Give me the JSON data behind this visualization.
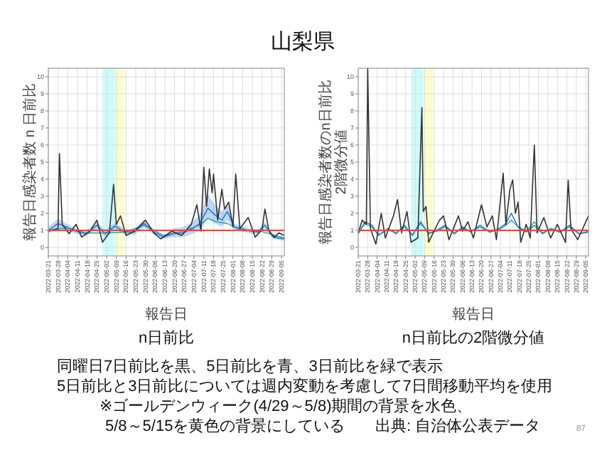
{
  "chart_data": [
    {
      "type": "line",
      "title": "山梨県",
      "subtitle": "n日前比",
      "xlabel": "報告日",
      "ylabel": "報告日感染者数 n 日前比",
      "xlim": [
        "2022-03-21",
        "2022-09-07"
      ],
      "ylim": [
        -0.5,
        10.5
      ],
      "yticks": [
        0,
        1,
        2,
        3,
        4,
        5,
        6,
        7,
        8,
        9,
        10
      ],
      "xticks": [
        "2022-03-21",
        "2022-03-28",
        "2022-04-04",
        "2022-04-11",
        "2022-04-18",
        "2022-04-25",
        "2022-05-02",
        "2022-05-09",
        "2022-05-16",
        "2022-05-23",
        "2022-05-30",
        "2022-06-06",
        "2022-06-13",
        "2022-06-20",
        "2022-06-27",
        "2022-07-04",
        "2022-07-11",
        "2022-07-18",
        "2022-07-25",
        "2022-08-01",
        "2022-08-08",
        "2022-08-15",
        "2022-08-22",
        "2022-08-29",
        "2022-09-05"
      ],
      "grid": true,
      "bands": [
        {
          "axis": "x",
          "from": "2022-04-29",
          "to": "2022-05-08",
          "color": "#ccfbfb"
        },
        {
          "axis": "x",
          "from": "2022-05-08",
          "to": "2022-05-15",
          "color": "#fdfccd"
        }
      ],
      "ref_lines": [
        {
          "axis": "y",
          "value": 1,
          "color": "#e5473c"
        }
      ],
      "series": [
        {
          "color": "#3cb39a",
          "x": [
            "2022-03-21",
            "2022-04-03",
            "2022-04-17",
            "2022-05-01",
            "2022-05-15",
            "2022-05-29",
            "2022-06-12",
            "2022-06-26",
            "2022-07-08",
            "2022-07-14",
            "2022-07-20",
            "2022-07-28",
            "2022-08-07",
            "2022-08-21",
            "2022-09-07"
          ],
          "values": [
            1.0,
            1.15,
            0.85,
            0.85,
            0.9,
            1.3,
            0.7,
            0.95,
            1.3,
            1.7,
            1.5,
            1.4,
            1.0,
            0.95,
            0.55
          ]
        },
        {
          "color": "#2b7bde",
          "x": [
            "2022-03-21",
            "2022-03-28",
            "2022-04-03",
            "2022-04-10",
            "2022-04-17",
            "2022-04-25",
            "2022-05-01",
            "2022-05-08",
            "2022-05-15",
            "2022-05-22",
            "2022-05-29",
            "2022-06-05",
            "2022-06-12",
            "2022-06-19",
            "2022-06-26",
            "2022-07-03",
            "2022-07-08",
            "2022-07-14",
            "2022-07-19",
            "2022-07-24",
            "2022-07-28",
            "2022-08-02",
            "2022-08-07",
            "2022-08-14",
            "2022-08-19",
            "2022-08-24",
            "2022-08-30",
            "2022-09-07"
          ],
          "values": [
            1.0,
            1.4,
            1.2,
            0.95,
            0.8,
            1.3,
            0.8,
            1.25,
            0.9,
            0.9,
            1.4,
            0.9,
            0.6,
            0.8,
            0.85,
            1.1,
            1.4,
            2.3,
            1.9,
            1.6,
            2.1,
            1.2,
            1.1,
            0.95,
            0.9,
            1.3,
            0.6,
            0.5
          ],
          "lower": [
            0.8,
            1.1,
            1.0,
            0.8,
            0.65,
            1.1,
            0.6,
            1.05,
            0.75,
            0.75,
            1.2,
            0.75,
            0.5,
            0.6,
            0.6,
            0.8,
            1.0,
            1.7,
            1.4,
            1.2,
            1.6,
            1.0,
            0.95,
            0.8,
            0.75,
            1.1,
            0.5,
            0.4
          ],
          "upper": [
            1.2,
            1.7,
            1.4,
            1.1,
            0.95,
            1.5,
            1.0,
            1.45,
            1.05,
            1.05,
            1.6,
            1.05,
            0.7,
            1.1,
            1.2,
            1.5,
            1.9,
            3.1,
            2.5,
            2.1,
            2.6,
            1.4,
            1.25,
            1.1,
            1.05,
            1.5,
            0.7,
            0.6
          ]
        },
        {
          "color": "#333333",
          "x": [
            "2022-03-21",
            "2022-03-28",
            "2022-03-29",
            "2022-03-31",
            "2022-04-05",
            "2022-04-10",
            "2022-04-14",
            "2022-04-20",
            "2022-04-25",
            "2022-04-29",
            "2022-05-04",
            "2022-05-07",
            "2022-05-09",
            "2022-05-12",
            "2022-05-16",
            "2022-05-22",
            "2022-05-30",
            "2022-06-05",
            "2022-06-10",
            "2022-06-18",
            "2022-06-25",
            "2022-07-02",
            "2022-07-06",
            "2022-07-09",
            "2022-07-11",
            "2022-07-13",
            "2022-07-15",
            "2022-07-17",
            "2022-07-18",
            "2022-07-21",
            "2022-07-24",
            "2022-07-26",
            "2022-07-29",
            "2022-08-01",
            "2022-08-03",
            "2022-08-06",
            "2022-08-12",
            "2022-08-17",
            "2022-08-22",
            "2022-08-24",
            "2022-08-27",
            "2022-08-31",
            "2022-09-03",
            "2022-09-07"
          ],
          "values": [
            0.95,
            1.1,
            5.5,
            1.35,
            0.8,
            1.35,
            0.6,
            0.95,
            1.6,
            0.3,
            0.85,
            3.7,
            1.35,
            1.85,
            0.7,
            0.95,
            1.6,
            0.85,
            0.5,
            0.95,
            0.7,
            1.35,
            2.5,
            0.95,
            4.7,
            2.4,
            4.6,
            3.2,
            4.3,
            1.6,
            3.4,
            2.25,
            2.65,
            1.2,
            4.3,
            1.1,
            1.75,
            0.6,
            1.05,
            2.25,
            0.95,
            0.6,
            0.85,
            0.7
          ]
        }
      ],
      "annotations": [
        "同曜日7日前比を黒、5日前比を青、3日前比を緑で表示",
        "5日前比と3日前比については週内変動を考慮して7日間移動平均を使用",
        "※ゴールデンウィーク(4/29～5/8)期間の背景を水色、",
        "5/8～5/15を黄色の背景にしている",
        "出典: 自治体公表データ",
        "87"
      ]
    },
    {
      "type": "line",
      "subtitle": "n日前比の2階微分値",
      "xlabel": "報告日",
      "ylabel": "報告日感染者数のn日前比\n2階微分値",
      "xlim": [
        "2022-03-21",
        "2022-09-07"
      ],
      "ylim": [
        -0.5,
        10.5
      ],
      "yticks": [
        0,
        1,
        2,
        3,
        4,
        5,
        6,
        7,
        8,
        9,
        10
      ],
      "xticks": [
        "2022-03-21",
        "2022-03-28",
        "2022-04-04",
        "2022-04-11",
        "2022-04-18",
        "2022-04-25",
        "2022-05-02",
        "2022-05-09",
        "2022-05-16",
        "2022-05-23",
        "2022-05-30",
        "2022-06-06",
        "2022-06-13",
        "2022-06-20",
        "2022-06-27",
        "2022-07-04",
        "2022-07-11",
        "2022-07-18",
        "2022-07-25",
        "2022-08-01",
        "2022-08-08",
        "2022-08-15",
        "2022-08-22",
        "2022-08-29",
        "2022-09-05"
      ],
      "grid": true,
      "bands": [
        {
          "axis": "x",
          "from": "2022-04-29",
          "to": "2022-05-08",
          "color": "#ccfbfb"
        },
        {
          "axis": "x",
          "from": "2022-05-08",
          "to": "2022-05-15",
          "color": "#fdfccd"
        }
      ],
      "ref_lines": [
        {
          "axis": "y",
          "value": 1,
          "color": "#e5473c"
        }
      ],
      "series": [
        {
          "color": "#3cb39a",
          "x": [
            "2022-03-21",
            "2022-03-26",
            "2022-03-31",
            "2022-04-05",
            "2022-04-12",
            "2022-04-18",
            "2022-04-24",
            "2022-04-30",
            "2022-05-06",
            "2022-05-12",
            "2022-05-18",
            "2022-05-24",
            "2022-05-31",
            "2022-06-06",
            "2022-06-12",
            "2022-06-19",
            "2022-06-26",
            "2022-07-03",
            "2022-07-08",
            "2022-07-12",
            "2022-07-17",
            "2022-07-23",
            "2022-07-29",
            "2022-08-04",
            "2022-08-10",
            "2022-08-17",
            "2022-08-24",
            "2022-08-31",
            "2022-09-07"
          ],
          "values": [
            0.85,
            1.4,
            1.2,
            0.75,
            1.05,
            0.85,
            1.2,
            0.75,
            1.4,
            0.85,
            0.95,
            1.2,
            0.85,
            1.15,
            0.95,
            1.2,
            0.9,
            1.05,
            1.3,
            1.6,
            1.2,
            0.95,
            1.5,
            0.85,
            1.1,
            0.9,
            1.2,
            0.8,
            0.95
          ]
        },
        {
          "color": "#2b7bde",
          "x": [
            "2022-03-21",
            "2022-03-26",
            "2022-03-31",
            "2022-04-05",
            "2022-04-12",
            "2022-04-18",
            "2022-04-24",
            "2022-04-30",
            "2022-05-06",
            "2022-05-12",
            "2022-05-18",
            "2022-05-24",
            "2022-05-31",
            "2022-06-06",
            "2022-06-12",
            "2022-06-19",
            "2022-06-26",
            "2022-07-03",
            "2022-07-08",
            "2022-07-12",
            "2022-07-17",
            "2022-07-23",
            "2022-07-29",
            "2022-08-04",
            "2022-08-10",
            "2022-08-17",
            "2022-08-24",
            "2022-08-31",
            "2022-09-07"
          ],
          "values": [
            0.8,
            1.5,
            1.3,
            0.7,
            1.1,
            0.8,
            1.3,
            0.7,
            1.5,
            0.8,
            1.0,
            1.3,
            0.8,
            1.2,
            0.9,
            1.3,
            0.9,
            1.1,
            1.4,
            2.0,
            1.2,
            0.9,
            1.3,
            0.8,
            1.1,
            0.9,
            1.3,
            0.8,
            0.9
          ]
        },
        {
          "color": "#333333",
          "x": [
            "2022-03-21",
            "2022-03-24",
            "2022-03-27",
            "2022-03-28",
            "2022-03-30",
            "2022-04-03",
            "2022-04-07",
            "2022-04-10",
            "2022-04-16",
            "2022-04-19",
            "2022-04-22",
            "2022-04-26",
            "2022-04-29",
            "2022-05-04",
            "2022-05-07",
            "2022-05-08",
            "2022-05-10",
            "2022-05-12",
            "2022-05-15",
            "2022-05-20",
            "2022-05-23",
            "2022-05-27",
            "2022-06-03",
            "2022-06-06",
            "2022-06-10",
            "2022-06-14",
            "2022-06-20",
            "2022-06-24",
            "2022-06-28",
            "2022-07-01",
            "2022-07-06",
            "2022-07-08",
            "2022-07-11",
            "2022-07-13",
            "2022-07-15",
            "2022-07-17",
            "2022-07-19",
            "2022-07-23",
            "2022-07-26",
            "2022-07-29",
            "2022-07-31",
            "2022-08-05",
            "2022-08-10",
            "2022-08-15",
            "2022-08-21",
            "2022-08-23",
            "2022-08-25",
            "2022-08-30",
            "2022-09-07"
          ],
          "values": [
            0.85,
            1.6,
            1.35,
            10.5,
            1.1,
            0.2,
            2.0,
            0.55,
            1.85,
            2.8,
            0.85,
            2.1,
            0.3,
            0.55,
            8.2,
            2.1,
            2.4,
            0.3,
            0.8,
            1.6,
            1.85,
            0.45,
            1.85,
            0.95,
            1.5,
            0.55,
            2.5,
            1.2,
            1.85,
            0.45,
            4.35,
            1.35,
            3.4,
            3.95,
            2.0,
            2.65,
            0.3,
            1.35,
            0.55,
            6.0,
            0.85,
            1.75,
            0.55,
            1.35,
            0.3,
            3.95,
            1.1,
            0.45,
            1.85
          ]
        }
      ]
    }
  ]
}
